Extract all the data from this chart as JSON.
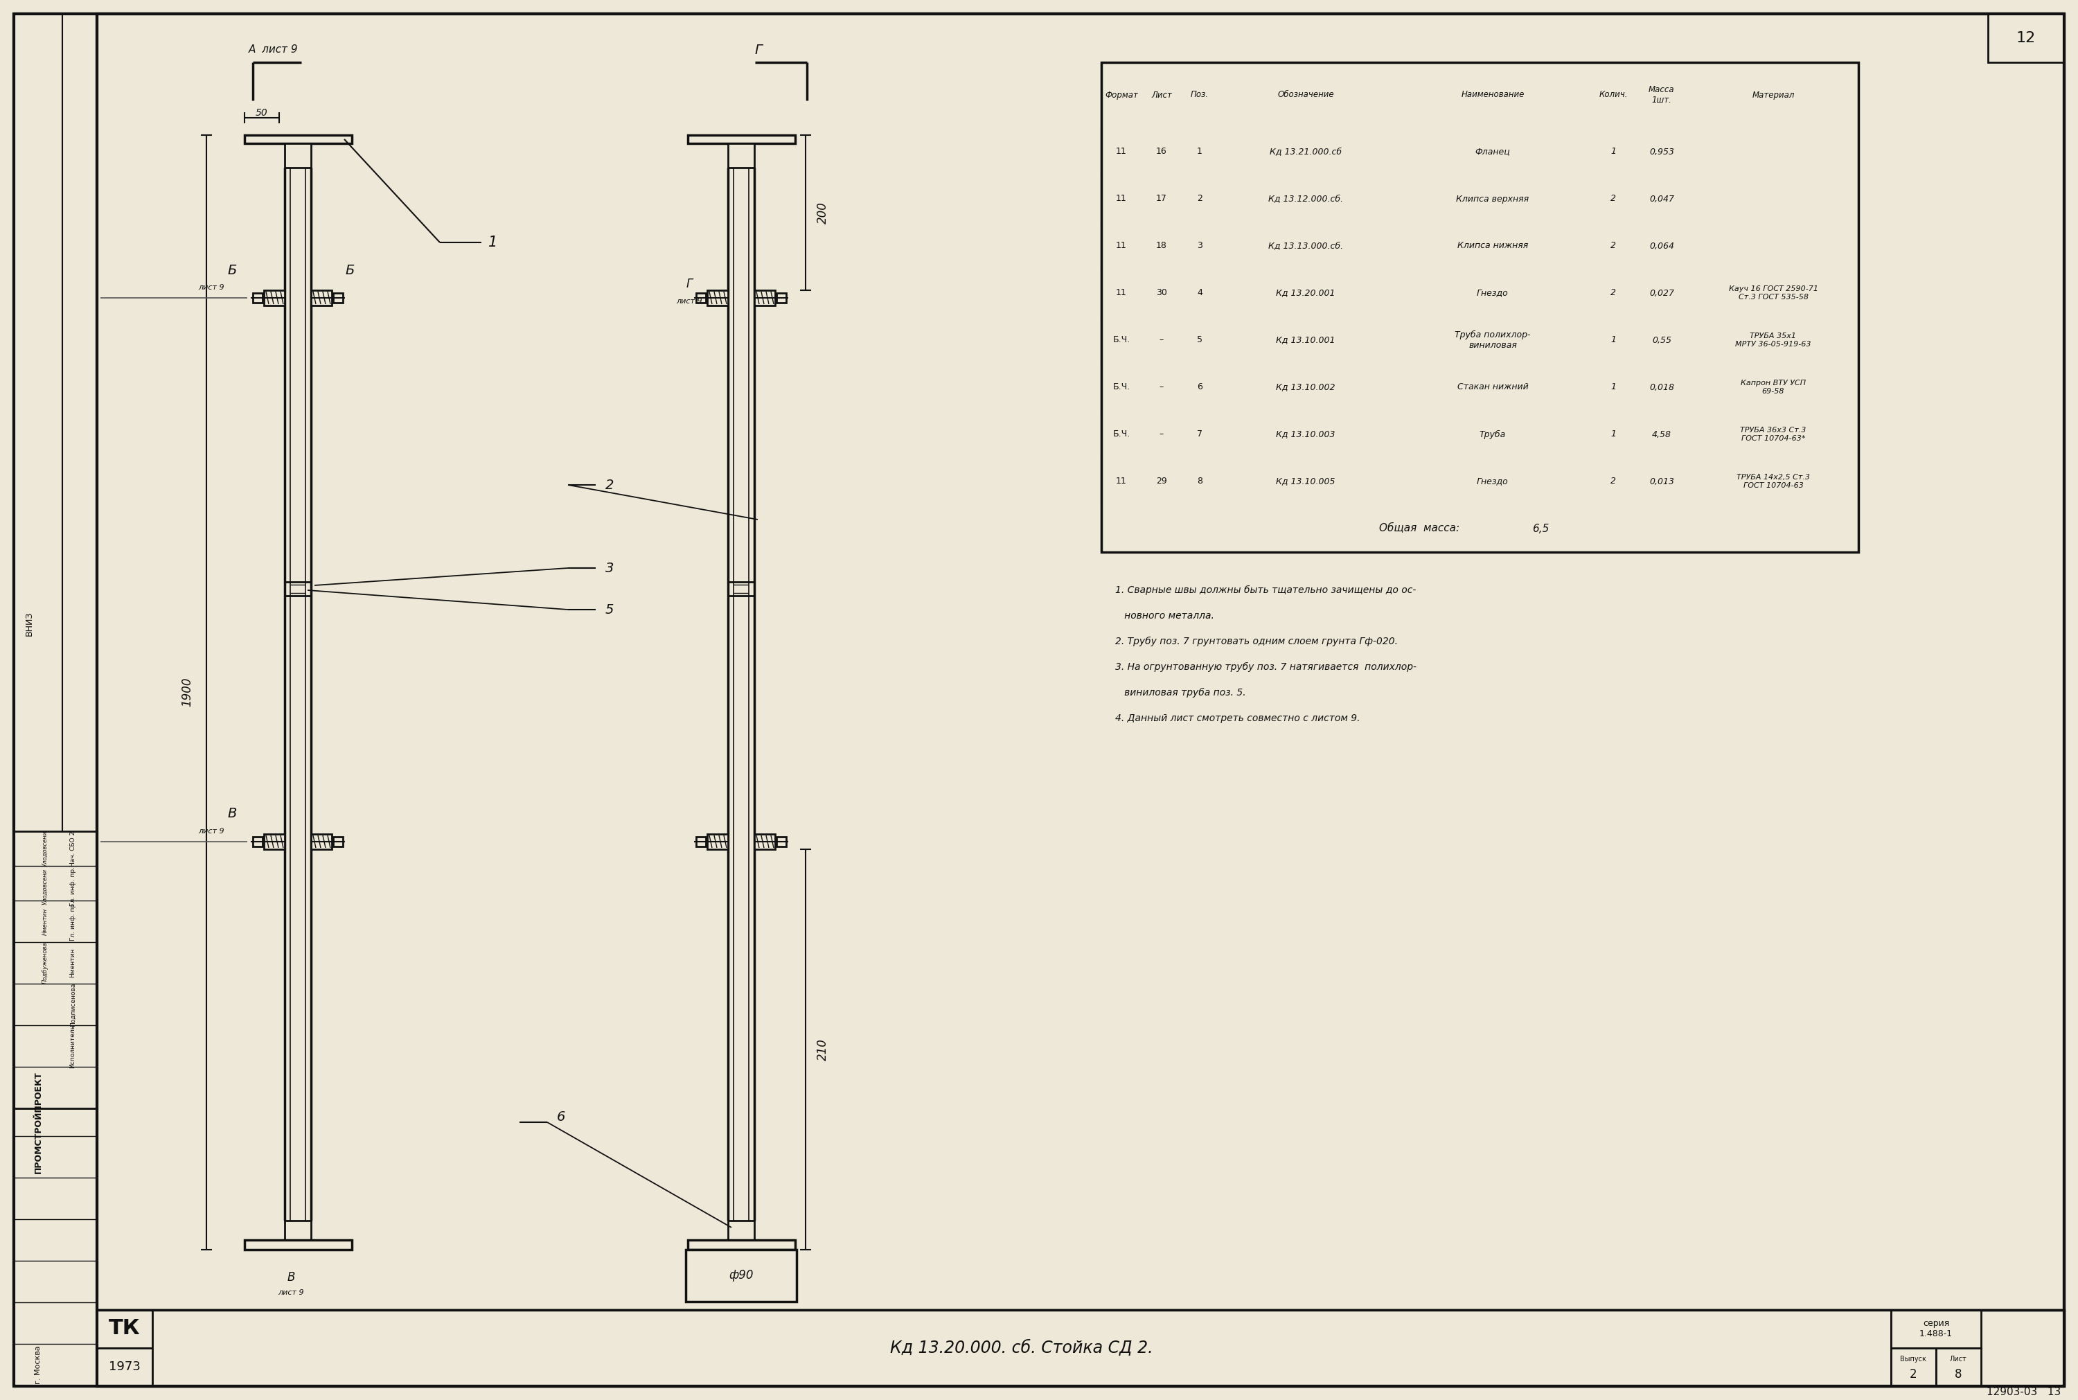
{
  "bg_color": "#ede8d8",
  "line_color": "#111111",
  "title": "Кд 13.20.000. сб. Стойка СД 2.",
  "year": "1973",
  "sheet_num": "12",
  "doc_num": "12903-03   13",
  "table_rows": [
    [
      "11",
      "16",
      "1",
      "Кд 13.21.000.сб",
      "Фланец",
      "1",
      "0,953",
      ""
    ],
    [
      "11",
      "17",
      "2",
      "Кд 13.12.000.сб.",
      "Клипса верхняя",
      "2",
      "0,047",
      ""
    ],
    [
      "11",
      "18",
      "3",
      "Кд 13.13.000.сб.",
      "Клипса нижняя",
      "2",
      "0,064",
      ""
    ],
    [
      "11",
      "30",
      "4",
      "Кд 13.20.001",
      "Гнездо",
      "2",
      "0,027",
      "Кауч 16 ГОСТ 2590-71\nСт.3 ГОСТ 535-58"
    ],
    [
      "Б.Ч.",
      "–",
      "5",
      "Кд 13.10.001",
      "Труба полихлор-\nвиниловая",
      "1",
      "0,55",
      "ТРУБА 35х1\nМРТУ 36-05-919-63"
    ],
    [
      "Б.Ч.",
      "–",
      "6",
      "Кд 13.10.002",
      "Стакан нижний",
      "1",
      "0,018",
      "Капрон ВТУ УСП\n69-58"
    ],
    [
      "Б.Ч.",
      "–",
      "7",
      "Кд 13.10.003",
      "Труба",
      "1",
      "4,58",
      "ТРУБА 36х3 Ст.3\nГОСТ 10704-63*"
    ],
    [
      "11",
      "29",
      "8",
      "Кд 13.10.005",
      "Гнездо",
      "2",
      "0,013",
      "ТРУБА 14х2,5 Ст.3\nГОСТ 10704-63"
    ]
  ],
  "total_mass": "6,5",
  "notes_lines": [
    "1. Сварные швы должны быть тщательно зачищены до ос-",
    "   новного металла.",
    "2. Трубу поз. 7 грунтовать одним слоем грунта Гф-020.",
    "3. На огрунтованную трубу поз. 7 натягивается  полихлор-",
    "   виниловая труба поз. 5.",
    "4. Данный лист смотреть совместно с листом 9."
  ],
  "org_name": "ПРОМСТРОЙПРОЕКТ",
  "city": "г. Москва",
  "series_text": "серия\n1.488-1",
  "vypusk": "2",
  "list_val": "8"
}
